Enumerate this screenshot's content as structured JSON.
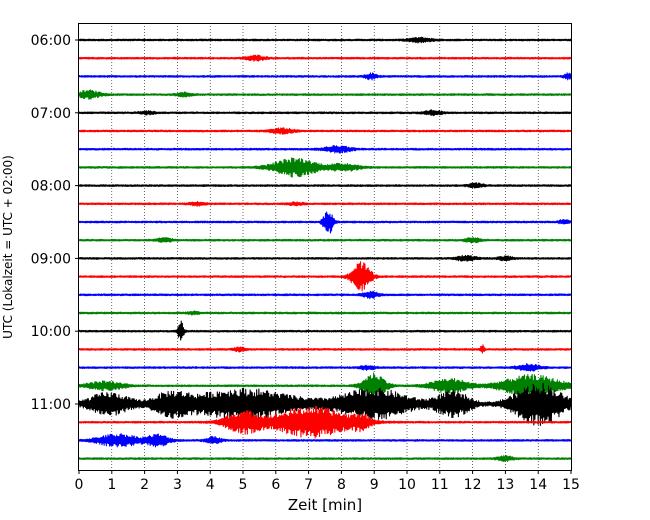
{
  "chart_data": {
    "type": "line",
    "title": "",
    "xlabel": "Zeit  [min]",
    "ylabel": "UTC (Lokalzeit = UTC + 02:00)",
    "xlim": [
      0,
      15
    ],
    "x_ticks": [
      "0",
      "1",
      "2",
      "3",
      "4",
      "5",
      "6",
      "7",
      "8",
      "9",
      "10",
      "11",
      "12",
      "13",
      "14",
      "15"
    ],
    "y_ticks": [
      "06:00",
      "07:00",
      "08:00",
      "09:00",
      "10:00",
      "11:00"
    ],
    "y_tick_rows": [
      0,
      4,
      8,
      12,
      16,
      20
    ],
    "grid": "vertical dotted at each minute",
    "row_interval_min": 15,
    "start_time": "06:00",
    "colors": [
      "#000000",
      "#ff0000",
      "#0000ff",
      "#008000"
    ],
    "rows": [
      {
        "time": "06:00",
        "color": "#000000",
        "events": [
          {
            "t": 10.4,
            "amp": 0.3,
            "dur": 0.6
          }
        ]
      },
      {
        "time": "06:15",
        "color": "#ff0000",
        "events": [
          {
            "t": 5.4,
            "amp": 0.35,
            "dur": 0.5
          }
        ]
      },
      {
        "time": "06:30",
        "color": "#0000ff",
        "events": [
          {
            "t": 8.9,
            "amp": 0.4,
            "dur": 0.3
          },
          {
            "t": 14.9,
            "amp": 0.4,
            "dur": 0.2
          }
        ]
      },
      {
        "time": "06:45",
        "color": "#008000",
        "events": [
          {
            "t": 0.3,
            "amp": 0.55,
            "dur": 0.6
          },
          {
            "t": 3.2,
            "amp": 0.25,
            "dur": 0.4
          }
        ]
      },
      {
        "time": "07:00",
        "color": "#000000",
        "events": [
          {
            "t": 10.8,
            "amp": 0.3,
            "dur": 0.5
          },
          {
            "t": 2.1,
            "amp": 0.2,
            "dur": 0.4
          }
        ]
      },
      {
        "time": "07:15",
        "color": "#ff0000",
        "events": [
          {
            "t": 6.2,
            "amp": 0.35,
            "dur": 0.6
          }
        ]
      },
      {
        "time": "07:30",
        "color": "#0000ff",
        "events": [
          {
            "t": 7.9,
            "amp": 0.45,
            "dur": 0.7
          }
        ]
      },
      {
        "time": "07:45",
        "color": "#008000",
        "events": [
          {
            "t": 6.6,
            "amp": 1.3,
            "dur": 1.2
          },
          {
            "t": 8.1,
            "amp": 0.5,
            "dur": 0.8
          }
        ]
      },
      {
        "time": "08:00",
        "color": "#000000",
        "events": [
          {
            "t": 12.1,
            "amp": 0.3,
            "dur": 0.4
          }
        ]
      },
      {
        "time": "08:15",
        "color": "#ff0000",
        "events": [
          {
            "t": 3.6,
            "amp": 0.25,
            "dur": 0.4
          },
          {
            "t": 6.6,
            "amp": 0.2,
            "dur": 0.4
          }
        ]
      },
      {
        "time": "08:30",
        "color": "#0000ff",
        "events": [
          {
            "t": 7.6,
            "amp": 1.8,
            "dur": 0.25
          },
          {
            "t": 14.8,
            "amp": 0.3,
            "dur": 0.3
          }
        ]
      },
      {
        "time": "08:45",
        "color": "#008000",
        "events": [
          {
            "t": 2.6,
            "amp": 0.3,
            "dur": 0.4
          },
          {
            "t": 12.0,
            "amp": 0.35,
            "dur": 0.4
          }
        ]
      },
      {
        "time": "09:00",
        "color": "#000000",
        "events": [
          {
            "t": 11.8,
            "amp": 0.4,
            "dur": 0.5
          },
          {
            "t": 13.0,
            "amp": 0.25,
            "dur": 0.4
          }
        ]
      },
      {
        "time": "09:15",
        "color": "#ff0000",
        "events": [
          {
            "t": 8.6,
            "amp": 2.0,
            "dur": 0.5
          }
        ]
      },
      {
        "time": "09:30",
        "color": "#0000ff",
        "events": [
          {
            "t": 8.9,
            "amp": 0.45,
            "dur": 0.4
          }
        ]
      },
      {
        "time": "09:45",
        "color": "#008000",
        "events": [
          {
            "t": 3.5,
            "amp": 0.2,
            "dur": 0.3
          }
        ]
      },
      {
        "time": "10:00",
        "color": "#000000",
        "events": [
          {
            "t": 3.1,
            "amp": 1.4,
            "dur": 0.15
          }
        ]
      },
      {
        "time": "10:15",
        "color": "#ff0000",
        "events": [
          {
            "t": 12.3,
            "amp": 0.6,
            "dur": 0.1
          },
          {
            "t": 4.9,
            "amp": 0.25,
            "dur": 0.3
          }
        ]
      },
      {
        "time": "10:30",
        "color": "#0000ff",
        "events": [
          {
            "t": 13.7,
            "amp": 0.5,
            "dur": 0.6
          },
          {
            "t": 8.8,
            "amp": 0.3,
            "dur": 0.4
          }
        ]
      },
      {
        "time": "10:45",
        "color": "#008000",
        "events": [
          {
            "t": 9.0,
            "amp": 1.8,
            "dur": 0.6
          },
          {
            "t": 13.8,
            "amp": 1.5,
            "dur": 1.6
          },
          {
            "t": 0.8,
            "amp": 0.6,
            "dur": 1.0
          },
          {
            "t": 11.3,
            "amp": 1.0,
            "dur": 1.0
          }
        ]
      },
      {
        "time": "11:00",
        "color": "#000000",
        "events": [
          {
            "t": 5.0,
            "amp": 2.2,
            "dur": 3.0
          },
          {
            "t": 9.0,
            "amp": 2.2,
            "dur": 2.0
          },
          {
            "t": 14.0,
            "amp": 3.0,
            "dur": 1.4
          },
          {
            "t": 0.9,
            "amp": 1.6,
            "dur": 1.2
          },
          {
            "t": 2.8,
            "amp": 1.4,
            "dur": 1.0
          },
          {
            "t": 11.4,
            "amp": 1.8,
            "dur": 1.0
          }
        ]
      },
      {
        "time": "11:15",
        "color": "#ff0000",
        "events": [
          {
            "t": 7.1,
            "amp": 2.2,
            "dur": 2.0
          },
          {
            "t": 5.0,
            "amp": 1.5,
            "dur": 1.0
          },
          {
            "t": 8.6,
            "amp": 0.8,
            "dur": 0.5
          }
        ]
      },
      {
        "time": "11:30",
        "color": "#0000ff",
        "events": [
          {
            "t": 1.2,
            "amp": 0.9,
            "dur": 1.1
          },
          {
            "t": 2.4,
            "amp": 0.8,
            "dur": 0.6
          },
          {
            "t": 4.1,
            "amp": 0.5,
            "dur": 0.4
          }
        ]
      },
      {
        "time": "11:45",
        "color": "#008000",
        "events": [
          {
            "t": 13.0,
            "amp": 0.35,
            "dur": 0.4
          }
        ]
      }
    ]
  }
}
